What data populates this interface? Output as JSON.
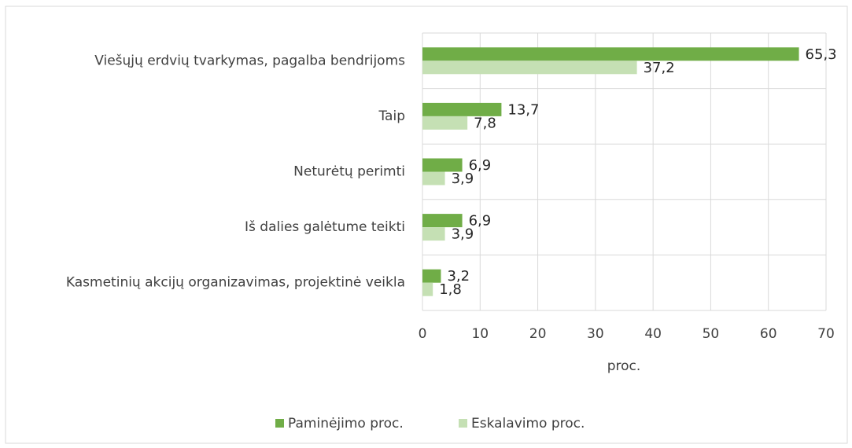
{
  "chart_data": {
    "type": "bar",
    "orientation": "horizontal",
    "categories": [
      "Viešųjų erdvių tvarkymas, pagalba bendrijoms",
      "Taip",
      "Neturėtų perimti",
      "Iš dalies galėtume teikti",
      "Kasmetinių akcijų organizavimas, projektinė veikla"
    ],
    "series": [
      {
        "name": "Paminėjimo proc.",
        "color": "#70ad47",
        "values": [
          65.3,
          13.7,
          6.9,
          6.9,
          3.2
        ],
        "value_labels": [
          "65,3",
          "13,7",
          "6,9",
          "6,9",
          "3,2"
        ]
      },
      {
        "name": "Eskalavimo proc.",
        "color": "#c5e0b4",
        "values": [
          37.2,
          7.8,
          3.9,
          3.9,
          1.8
        ],
        "value_labels": [
          "37,2",
          "7,8",
          "3,9",
          "3,9",
          "1,8"
        ]
      }
    ],
    "x_label": "proc.",
    "xlim": [
      0,
      70
    ],
    "xticks": [
      0,
      10,
      20,
      30,
      40,
      50,
      60,
      70
    ],
    "grid": true,
    "legend": "bottom"
  }
}
